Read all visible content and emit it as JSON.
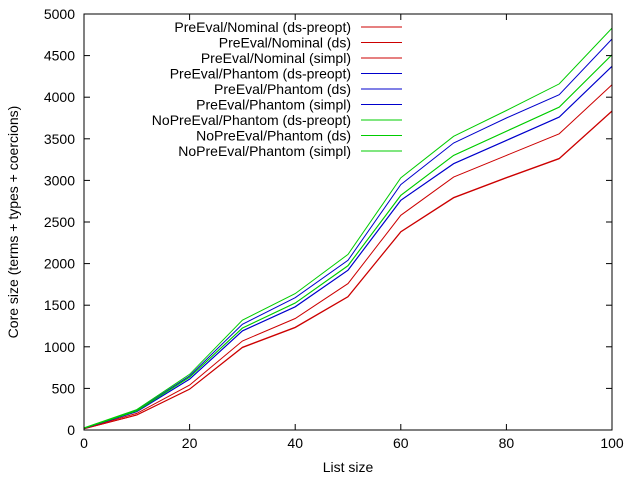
{
  "chart_data": {
    "type": "line",
    "title": "",
    "xlabel": "List size",
    "ylabel": "Core size (terms + types + coercions)",
    "xlim": [
      0,
      100
    ],
    "ylim": [
      0,
      5000
    ],
    "xticks": [
      0,
      20,
      40,
      60,
      80,
      100
    ],
    "yticks": [
      0,
      500,
      1000,
      1500,
      2000,
      2500,
      3000,
      3500,
      4000,
      4500,
      5000
    ],
    "grid": false,
    "legend_position": "top-left",
    "x": [
      0,
      10,
      20,
      30,
      40,
      50,
      60,
      70,
      80,
      90,
      100
    ],
    "series": [
      {
        "name": "PreEval/Nominal (ds-preopt)",
        "color": "#cc0000",
        "values": [
          20,
          200,
          540,
          1070,
          1340,
          1760,
          2580,
          3040,
          3300,
          3560,
          4150
        ]
      },
      {
        "name": "PreEval/Nominal (ds)",
        "color": "#cc0000",
        "values": [
          15,
          180,
          490,
          990,
          1230,
          1600,
          2380,
          2790,
          3030,
          3260,
          3830
        ]
      },
      {
        "name": "PreEval/Nominal (simpl)",
        "color": "#cc0000",
        "values": [
          15,
          182,
          492,
          995,
          1235,
          1605,
          2385,
          2795,
          3035,
          3265,
          3835
        ]
      },
      {
        "name": "PreEval/Phantom (ds-preopt)",
        "color": "#0000cc",
        "values": [
          22,
          235,
          650,
          1270,
          1590,
          2040,
          2950,
          3450,
          3750,
          4030,
          4700
        ]
      },
      {
        "name": "PreEval/Phantom (ds)",
        "color": "#0000cc",
        "values": [
          20,
          220,
          610,
          1190,
          1480,
          1920,
          2760,
          3200,
          3480,
          3760,
          4370
        ]
      },
      {
        "name": "PreEval/Phantom (simpl)",
        "color": "#0000cc",
        "values": [
          20,
          222,
          612,
          1192,
          1482,
          1922,
          2762,
          3202,
          3482,
          3762,
          4372
        ]
      },
      {
        "name": "NoPreEval/Phantom (ds-preopt)",
        "color": "#00cc00",
        "values": [
          25,
          245,
          670,
          1320,
          1640,
          2110,
          3030,
          3530,
          3840,
          4160,
          4830
        ]
      },
      {
        "name": "NoPreEval/Phantom (ds)",
        "color": "#00cc00",
        "values": [
          22,
          230,
          635,
          1225,
          1525,
          1975,
          2820,
          3300,
          3590,
          3880,
          4510
        ]
      },
      {
        "name": "NoPreEval/Phantom (simpl)",
        "color": "#00cc00",
        "values": [
          22,
          231,
          636,
          1226,
          1526,
          1976,
          2821,
          3301,
          3591,
          3881,
          4511
        ]
      }
    ]
  }
}
